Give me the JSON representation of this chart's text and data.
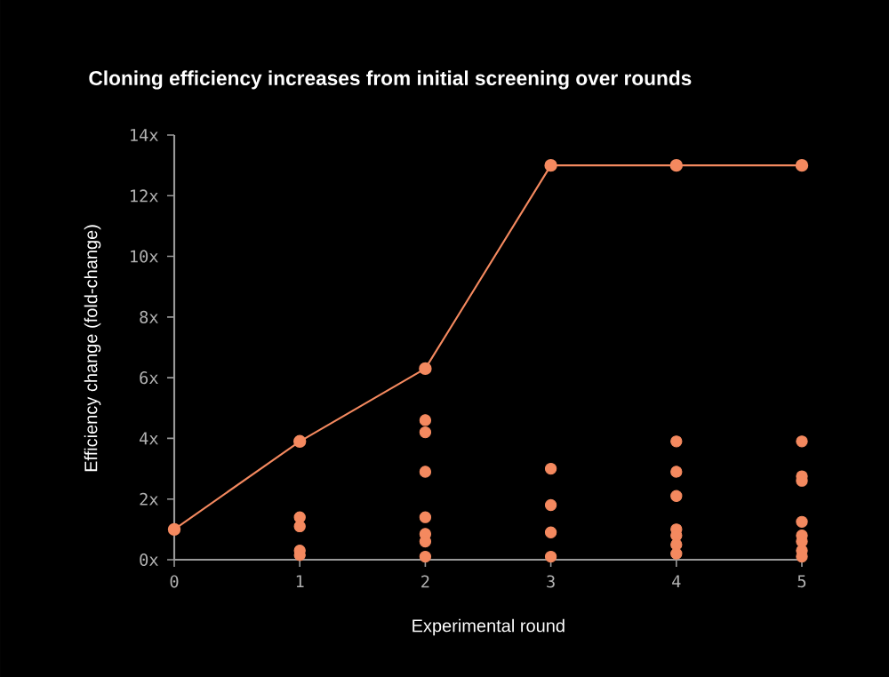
{
  "chart_data": {
    "type": "line",
    "title": "Cloning efficiency increases from initial screening over rounds",
    "xlabel": "Experimental round",
    "ylabel": "Efficiency change (fold-change)",
    "xlim": [
      0,
      5
    ],
    "xticks": [
      0,
      1,
      2,
      3,
      4,
      5
    ],
    "ylim": [
      0,
      14
    ],
    "yticks": [
      {
        "value": 0,
        "label": "0x"
      },
      {
        "value": 2,
        "label": "2x"
      },
      {
        "value": 4,
        "label": "4x"
      },
      {
        "value": 6,
        "label": "6x"
      },
      {
        "value": 8,
        "label": "8x"
      },
      {
        "value": 10,
        "label": "10x"
      },
      {
        "value": 12,
        "label": "12x"
      },
      {
        "value": 14,
        "label": "14x"
      }
    ],
    "series": [
      {
        "marker": "circle",
        "color": "#f4895f",
        "x": [
          0,
          1,
          2,
          3,
          4,
          5
        ],
        "values": [
          1,
          3.9,
          6.3,
          13,
          13,
          13
        ]
      },
      {
        "type": "scatter",
        "marker": "circle",
        "color": "#f4895f",
        "x": [
          1,
          1,
          1,
          1,
          2,
          2,
          2,
          2,
          2,
          2,
          2,
          3,
          3,
          3,
          3,
          4,
          4,
          4,
          4,
          4,
          4,
          4,
          5,
          5,
          5,
          5,
          5,
          5,
          5,
          5
        ],
        "values": [
          1.4,
          1.1,
          0.3,
          0.15,
          4.6,
          4.2,
          2.9,
          1.4,
          0.85,
          0.6,
          0.1,
          3.0,
          1.8,
          0.9,
          0.1,
          3.9,
          2.9,
          2.1,
          1.0,
          0.8,
          0.5,
          0.2,
          3.9,
          2.75,
          2.6,
          1.25,
          0.8,
          0.6,
          0.3,
          0.1
        ]
      }
    ]
  }
}
